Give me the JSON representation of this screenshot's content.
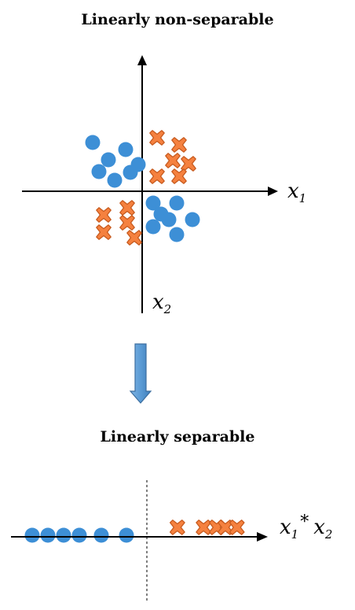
{
  "titles": {
    "top": "Linearly non-separable",
    "bottom": "Linearly separable"
  },
  "axes": {
    "top_x_label": "x",
    "top_x_sub": "1",
    "top_y_label": "x",
    "top_y_sub": "2",
    "bottom_label_a": "x",
    "bottom_label_a_sub": "1",
    "bottom_label_op": "*",
    "bottom_label_b": "x",
    "bottom_label_b_sub": "2"
  },
  "colors": {
    "circle": "#3d8fd6",
    "cross_fill": "#f5813f",
    "cross_stroke": "#c75a1e",
    "arrow_fill": "#5b9bd5",
    "arrow_stroke": "#3c6e9f"
  },
  "chart_data": {
    "top_scatter": {
      "type": "scatter",
      "classes": {
        "circles": [
          [
            -6.3,
            6.2
          ],
          [
            -2.1,
            5.3
          ],
          [
            -4.3,
            4.0
          ],
          [
            -0.5,
            3.4
          ],
          [
            -5.5,
            2.5
          ],
          [
            -1.5,
            2.4
          ],
          [
            -3.5,
            1.4
          ],
          [
            1.4,
            -1.5
          ],
          [
            4.4,
            -1.5
          ],
          [
            2.4,
            -2.9
          ],
          [
            3.4,
            -3.6
          ],
          [
            6.4,
            -3.6
          ],
          [
            1.4,
            -4.5
          ],
          [
            4.4,
            -5.5
          ]
        ],
        "crosses": [
          [
            1.9,
            6.8
          ],
          [
            4.7,
            5.9
          ],
          [
            3.9,
            3.9
          ],
          [
            5.9,
            3.5
          ],
          [
            1.9,
            1.9
          ],
          [
            4.7,
            1.9
          ],
          [
            -1.9,
            -2.1
          ],
          [
            -4.9,
            -3.0
          ],
          [
            -1.9,
            -4.0
          ],
          [
            -4.9,
            -5.2
          ],
          [
            -1.0,
            -5.9
          ]
        ]
      }
    },
    "bottom_projection": {
      "type": "scatter",
      "circles": [
        -7.3,
        -6.3,
        -5.3,
        -4.3,
        -2.9,
        -1.3
      ],
      "crosses": [
        2.1,
        3.9,
        4.8,
        5.4,
        6.2
      ]
    }
  }
}
